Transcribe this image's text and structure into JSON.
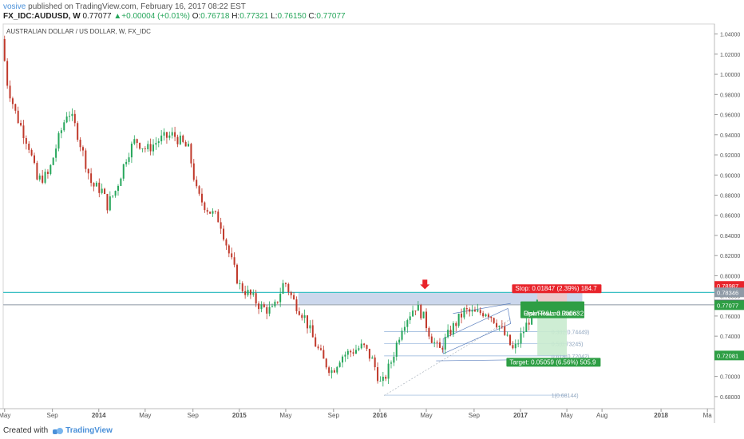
{
  "header": {
    "user": "vosive",
    "published_text": "published on TradingView.com, February 16, 2017 08:22 EST",
    "symbol": "FX_IDC:AUDUSD, W",
    "last": "0.77077",
    "change_arrow": "▲",
    "change": "+0.00004 (+0.01%)",
    "o_label": "O:",
    "o_value": "0.76718",
    "h_label": "H:",
    "h_value": "0.77321",
    "l_label": "L:",
    "l_value": "0.76150",
    "c_label": "C:",
    "c_value": "0.77077"
  },
  "footer": {
    "created_with": "Created with",
    "brand": "TradingView"
  },
  "chart_data": {
    "type": "candlestick",
    "title": "AUSTRALIAN DOLLAR / US DOLLAR, W, FX_IDC",
    "ylim": [
      0.668,
      1.05
    ],
    "y_ticks": [
      "1.04000",
      "1.02000",
      "1.00000",
      "0.98000",
      "0.96000",
      "0.94000",
      "0.92000",
      "0.90000",
      "0.88000",
      "0.86000",
      "0.84000",
      "0.82000",
      "0.80000",
      "0.78000",
      "0.76000",
      "0.74000",
      "0.72000",
      "0.70000",
      "0.68000"
    ],
    "x_ticks": [
      {
        "label": "May",
        "t": 2013.33
      },
      {
        "label": "Sep",
        "t": 2013.67
      },
      {
        "label": "2014",
        "t": 2014.0
      },
      {
        "label": "May",
        "t": 2014.33
      },
      {
        "label": "Sep",
        "t": 2014.67
      },
      {
        "label": "2015",
        "t": 2015.0
      },
      {
        "label": "May",
        "t": 2015.33
      },
      {
        "label": "Sep",
        "t": 2015.67
      },
      {
        "label": "2016",
        "t": 2016.0
      },
      {
        "label": "May",
        "t": 2016.33
      },
      {
        "label": "Sep",
        "t": 2016.67
      },
      {
        "label": "2017",
        "t": 2017.0
      },
      {
        "label": "May",
        "t": 2017.33
      },
      {
        "label": "Aug",
        "t": 2017.58
      },
      {
        "label": "2018",
        "t": 2018.0
      },
      {
        "label": "Ma",
        "t": 2018.33
      }
    ],
    "price_path": [
      [
        2013.33,
        1.035
      ],
      [
        2013.37,
        0.99
      ],
      [
        2013.43,
        0.96
      ],
      [
        2013.52,
        0.93
      ],
      [
        2013.58,
        0.895
      ],
      [
        2013.66,
        0.9
      ],
      [
        2013.72,
        0.93
      ],
      [
        2013.8,
        0.965
      ],
      [
        2013.86,
        0.945
      ],
      [
        2013.92,
        0.915
      ],
      [
        2013.97,
        0.89
      ],
      [
        2014.04,
        0.885
      ],
      [
        2014.08,
        0.87
      ],
      [
        2014.14,
        0.885
      ],
      [
        2014.22,
        0.92
      ],
      [
        2014.28,
        0.935
      ],
      [
        2014.36,
        0.925
      ],
      [
        2014.45,
        0.935
      ],
      [
        2014.55,
        0.94
      ],
      [
        2014.66,
        0.925
      ],
      [
        2014.72,
        0.88
      ],
      [
        2014.8,
        0.865
      ],
      [
        2014.88,
        0.855
      ],
      [
        2014.95,
        0.82
      ],
      [
        2015.02,
        0.79
      ],
      [
        2015.1,
        0.78
      ],
      [
        2015.18,
        0.768
      ],
      [
        2015.26,
        0.765
      ],
      [
        2015.34,
        0.795
      ],
      [
        2015.4,
        0.776
      ],
      [
        2015.48,
        0.76
      ],
      [
        2015.55,
        0.735
      ],
      [
        2015.62,
        0.715
      ],
      [
        2015.68,
        0.705
      ],
      [
        2015.74,
        0.72
      ],
      [
        2015.82,
        0.725
      ],
      [
        2015.9,
        0.73
      ],
      [
        2015.97,
        0.715
      ],
      [
        2016.03,
        0.69
      ],
      [
        2016.1,
        0.715
      ],
      [
        2016.18,
        0.752
      ],
      [
        2016.27,
        0.77
      ],
      [
        2016.32,
        0.762
      ],
      [
        2016.38,
        0.74
      ],
      [
        2016.44,
        0.725
      ],
      [
        2016.52,
        0.745
      ],
      [
        2016.62,
        0.765
      ],
      [
        2016.7,
        0.762
      ],
      [
        2016.78,
        0.765
      ],
      [
        2016.86,
        0.752
      ],
      [
        2016.92,
        0.738
      ],
      [
        2016.97,
        0.725
      ],
      [
        2017.04,
        0.745
      ],
      [
        2017.1,
        0.762
      ],
      [
        2017.13,
        0.771
      ]
    ],
    "horizontal_levels": [
      0.7834,
      0.7714,
      0.7708
    ],
    "fib_levels": [
      {
        "label": "0.382(0.74449)",
        "value": 0.74449
      },
      {
        "label": "0.5(0.73245)",
        "value": 0.73245
      },
      {
        "label": "0.618(0.72042)",
        "value": 0.72042
      },
      {
        "label": "1(0.68144)",
        "value": 0.68144
      }
    ],
    "price_labels": [
      {
        "text": "0.78987",
        "value": 0.78987,
        "color": "#e8242b"
      },
      {
        "text": "0.78346",
        "value": 0.78346,
        "color": "#8f9aa6"
      },
      {
        "text": "0.77140",
        "value": 0.7714,
        "color": "#5a6570"
      },
      {
        "text": "0.77077",
        "value": 0.77077,
        "color": "#2e9e44"
      },
      {
        "text": "0.72081",
        "value": 0.72081,
        "color": "#2e9e44"
      }
    ],
    "position": {
      "entry": 0.7714,
      "stop": 0.78987,
      "target": 0.72081,
      "stop_label": "Stop: 0.01847 (2.39%) 184.7",
      "pnl_label": "Open P&L: 0.00063",
      "rr_label": "Risk/Reward Ratio: 2.74",
      "target_label": "Target: 0.05059 (6.56%) 505.9"
    },
    "colors": {
      "up": "#26a65b",
      "down": "#c0392b",
      "cyan_line": "#3cc0c4",
      "zone": "#b9c9e6",
      "stop_zone": "#f2c6c6",
      "target_zone": "#c9ebcf",
      "stop_box": "#e8242b",
      "target_box": "#2e9e44",
      "arrow": "#e8242b"
    }
  }
}
